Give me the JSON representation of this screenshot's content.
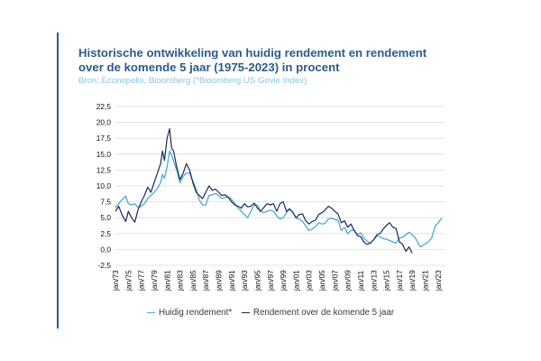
{
  "header": {
    "title_line1": "Historische ontwikkeling van huidig rendement en rendement",
    "title_line2": "over de komende 5 jaar (1975-2023) in procent",
    "source": "Bron: Econopolis, Bloomberg (*Bloomberg US Govie Index)"
  },
  "colors": {
    "accent": "#2f5a86",
    "title": "#2d5b8a",
    "source": "#8bc4de",
    "series_current": "#4aa9d6",
    "series_forward": "#1c2a57",
    "gridline": "#dcdcdc"
  },
  "chart_data": {
    "type": "line",
    "title": "Historische ontwikkeling van huidig rendement en rendement over de komende 5 jaar (1975-2023) in procent",
    "xlabel": "",
    "ylabel": "",
    "ylim": [
      -2.5,
      22.5
    ],
    "yticks": [
      "22,5",
      "20,0",
      "17,5",
      "15,0",
      "12,5",
      "10,0",
      "7,5",
      "5,0",
      "2,5",
      "0,0",
      "-2,5"
    ],
    "xticks": [
      "jan/73",
      "jan/75",
      "jan/77",
      "jan/79",
      "jan/81",
      "jan/83",
      "jan/85",
      "jan/87",
      "jan/89",
      "jan/91",
      "jan/93",
      "jan/95",
      "jan/97",
      "jan/99",
      "jan/01",
      "jan/03",
      "jan/05",
      "jan/07",
      "jan/09",
      "jan/11",
      "jan/13",
      "jan/15",
      "jan/17",
      "jan/19",
      "jan/21",
      "jan/23"
    ],
    "grid": true,
    "legend_position": "bottom",
    "series": [
      {
        "name": "Huidig rendement*",
        "x": [
          1973.0,
          1973.5,
          1974.0,
          1974.6,
          1975.0,
          1975.5,
          1976.0,
          1976.5,
          1977.0,
          1977.5,
          1978.0,
          1978.5,
          1979.0,
          1979.5,
          1980.0,
          1980.3,
          1980.6,
          1981.0,
          1981.4,
          1981.7,
          1982.0,
          1982.5,
          1983.0,
          1983.5,
          1984.0,
          1984.5,
          1985.0,
          1985.5,
          1986.0,
          1986.5,
          1987.0,
          1987.5,
          1988.0,
          1988.5,
          1989.0,
          1989.5,
          1990.0,
          1990.5,
          1991.0,
          1991.5,
          1992.0,
          1992.5,
          1993.0,
          1993.5,
          1994.0,
          1994.5,
          1995.0,
          1995.5,
          1996.0,
          1996.5,
          1997.0,
          1997.5,
          1998.0,
          1998.5,
          1999.0,
          1999.5,
          2000.0,
          2000.5,
          2001.0,
          2001.5,
          2002.0,
          2002.5,
          2003.0,
          2003.5,
          2004.0,
          2004.5,
          2005.0,
          2005.5,
          2006.0,
          2006.5,
          2007.0,
          2007.5,
          2008.0,
          2008.5,
          2009.0,
          2009.5,
          2010.0,
          2010.5,
          2011.0,
          2011.5,
          2012.0,
          2012.5,
          2013.0,
          2013.5,
          2014.0,
          2014.5,
          2015.0,
          2015.5,
          2016.0,
          2016.5,
          2017.0,
          2017.5,
          2018.0,
          2018.5,
          2019.0,
          2019.5,
          2020.0,
          2020.3,
          2020.6,
          2021.0,
          2021.5,
          2022.0,
          2022.3,
          2022.6,
          2023.0,
          2023.3,
          2023.6
        ],
        "values": [
          6.6,
          7.2,
          7.8,
          8.4,
          7.2,
          7.0,
          7.2,
          6.6,
          6.8,
          7.2,
          8.0,
          8.5,
          9.0,
          9.6,
          10.5,
          11.8,
          11.2,
          13.0,
          15.5,
          14.8,
          14.0,
          12.5,
          10.5,
          11.5,
          12.0,
          12.0,
          10.8,
          9.5,
          7.8,
          7.0,
          7.0,
          8.5,
          8.6,
          8.8,
          8.5,
          8.0,
          8.2,
          8.3,
          7.9,
          7.2,
          6.5,
          6.0,
          5.5,
          5.0,
          6.0,
          7.0,
          7.0,
          6.0,
          5.8,
          6.0,
          6.2,
          6.0,
          5.3,
          4.8,
          5.0,
          5.8,
          6.3,
          5.9,
          4.9,
          4.8,
          4.4,
          3.7,
          3.0,
          3.2,
          3.6,
          4.2,
          4.0,
          4.1,
          4.8,
          4.9,
          4.7,
          4.6,
          3.0,
          3.5,
          2.5,
          3.0,
          3.0,
          2.4,
          2.6,
          1.8,
          1.3,
          1.0,
          1.5,
          2.1,
          2.0,
          1.7,
          1.6,
          1.4,
          1.2,
          1.0,
          1.8,
          1.9,
          2.3,
          2.7,
          2.3,
          1.8,
          0.8,
          0.4,
          0.6,
          0.9,
          1.2,
          1.8,
          2.8,
          3.8,
          4.1,
          4.6,
          4.9
        ]
      },
      {
        "name": "Rendement over de komende 5 jaar",
        "x": [
          1973.0,
          1973.5,
          1974.0,
          1974.6,
          1975.0,
          1975.5,
          1976.0,
          1976.5,
          1977.0,
          1977.5,
          1978.0,
          1978.5,
          1979.0,
          1979.5,
          1980.0,
          1980.3,
          1980.6,
          1981.0,
          1981.4,
          1981.7,
          1982.0,
          1982.5,
          1983.0,
          1983.5,
          1984.0,
          1984.5,
          1985.0,
          1985.5,
          1986.0,
          1986.5,
          1987.0,
          1987.5,
          1988.0,
          1988.5,
          1989.0,
          1989.5,
          1990.0,
          1990.5,
          1991.0,
          1991.5,
          1992.0,
          1992.5,
          1993.0,
          1993.5,
          1994.0,
          1994.5,
          1995.0,
          1995.5,
          1996.0,
          1996.5,
          1997.0,
          1997.5,
          1998.0,
          1998.5,
          1999.0,
          1999.5,
          2000.0,
          2000.5,
          2001.0,
          2001.5,
          2002.0,
          2002.5,
          2003.0,
          2003.5,
          2004.0,
          2004.5,
          2005.0,
          2005.5,
          2006.0,
          2006.5,
          2007.0,
          2007.5,
          2008.0,
          2008.5,
          2009.0,
          2009.5,
          2010.0,
          2010.5,
          2011.0,
          2011.5,
          2012.0,
          2012.5,
          2013.0,
          2013.5,
          2014.0,
          2014.5,
          2015.0,
          2015.5,
          2016.0,
          2016.5,
          2017.0,
          2017.5,
          2018.0,
          2018.5,
          2019.0
        ],
        "values": [
          6.0,
          6.8,
          5.5,
          4.4,
          6.0,
          5.0,
          4.3,
          6.2,
          7.5,
          8.5,
          9.8,
          9.0,
          10.5,
          12.0,
          13.5,
          15.5,
          14.0,
          17.5,
          19.0,
          16.0,
          15.5,
          13.0,
          11.0,
          12.0,
          13.5,
          12.5,
          10.5,
          9.0,
          8.5,
          8.0,
          9.0,
          10.0,
          9.3,
          9.5,
          9.0,
          8.5,
          8.6,
          8.2,
          7.5,
          7.0,
          6.8,
          6.5,
          7.2,
          6.7,
          6.8,
          7.3,
          6.5,
          6.0,
          6.6,
          7.2,
          7.0,
          7.2,
          6.0,
          7.2,
          7.5,
          6.0,
          6.4,
          5.8,
          5.0,
          5.5,
          5.6,
          4.5,
          4.0,
          4.4,
          4.6,
          5.5,
          5.8,
          6.2,
          6.8,
          6.5,
          6.0,
          5.6,
          4.2,
          4.5,
          3.5,
          4.0,
          3.0,
          2.2,
          2.0,
          1.2,
          0.8,
          1.0,
          1.5,
          2.3,
          2.5,
          3.2,
          3.8,
          4.2,
          3.5,
          3.3,
          1.2,
          0.8,
          -0.3,
          0.4,
          -0.6
        ]
      }
    ]
  }
}
